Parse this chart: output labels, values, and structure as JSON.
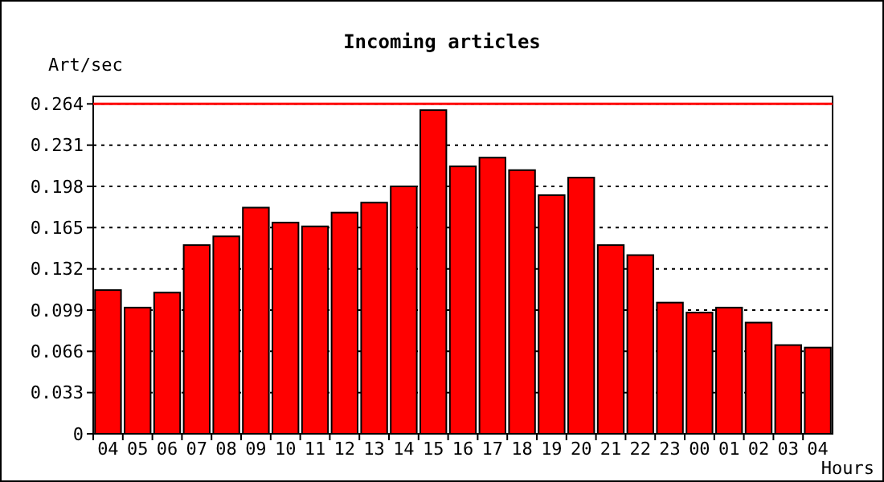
{
  "chart_data": {
    "type": "bar",
    "title": "Incoming articles",
    "xlabel": "Hours",
    "ylabel": "Art/sec",
    "categories": [
      "04",
      "05",
      "06",
      "07",
      "08",
      "09",
      "10",
      "11",
      "12",
      "13",
      "14",
      "15",
      "16",
      "17",
      "18",
      "19",
      "20",
      "21",
      "22",
      "23",
      "00",
      "01",
      "02",
      "03",
      "04"
    ],
    "values": [
      0.115,
      0.101,
      0.113,
      0.151,
      0.158,
      0.181,
      0.169,
      0.166,
      0.177,
      0.185,
      0.198,
      0.259,
      0.214,
      0.221,
      0.211,
      0.191,
      0.205,
      0.151,
      0.143,
      0.105,
      0.097,
      0.101,
      0.089,
      0.071,
      0.069
    ],
    "color": "#ff0000",
    "ylim": [
      0,
      0.27
    ],
    "yticks": [
      0,
      0.033,
      0.066,
      0.099,
      0.132,
      0.165,
      0.198,
      0.231,
      0.264
    ],
    "grid": "y",
    "ref_lines": [
      {
        "axis": "y",
        "value": 0.264,
        "color": "#ff0000"
      }
    ]
  }
}
